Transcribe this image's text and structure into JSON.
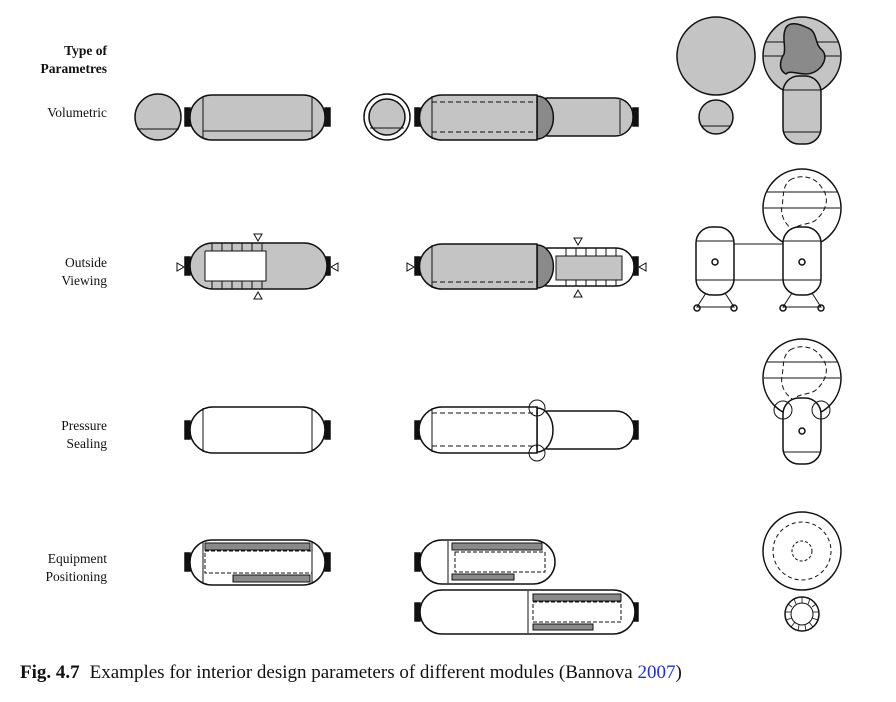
{
  "header": {
    "line1": "Type of",
    "line2": "Parametres"
  },
  "rows": [
    {
      "line1": "Volumetric"
    },
    {
      "line1": "Outside",
      "line2": "Viewing"
    },
    {
      "line1": "Pressure",
      "line2": "Sealing"
    },
    {
      "line1": "Equipment",
      "line2": "Positioning"
    }
  ],
  "caption": {
    "figure": "Fig. 4.7",
    "text": "Examples for interior design parameters of different modules (Bannova ",
    "ref": "2007",
    "close": ")"
  },
  "colors": {
    "fill": "#c4c4c4",
    "dark": "#8a8a8a",
    "line": "#111111"
  }
}
